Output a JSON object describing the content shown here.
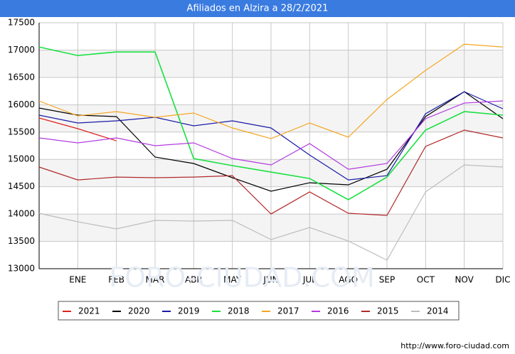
{
  "chart_data": {
    "type": "line",
    "title": "Afiliados en Alzira a 28/2/2021",
    "footer": "http://www.foro-ciudad.com",
    "watermark": "FORO-CIUDAD.COM",
    "categories": [
      null,
      "ENE",
      "FEB",
      "MAR",
      "ABR",
      "MAY",
      "JUN",
      "JUL",
      "AGO",
      "SEP",
      "OCT",
      "NOV",
      "DIC"
    ],
    "ylim": [
      13000,
      17500
    ],
    "yticks": [
      13000,
      13500,
      14000,
      14500,
      15000,
      15500,
      16000,
      16500,
      17000,
      17500
    ],
    "grid": true,
    "legend": "bottom",
    "series": [
      {
        "name": "2021",
        "color": "#e0201c",
        "values": [
          15757,
          15562,
          15340,
          null,
          null,
          null,
          null,
          null,
          null,
          null,
          null,
          null,
          null
        ]
      },
      {
        "name": "2020",
        "color": "#000000",
        "values": [
          15939,
          15809,
          15783,
          15042,
          14925,
          14665,
          14417,
          14573,
          14535,
          14820,
          15783,
          16238,
          15744
        ]
      },
      {
        "name": "2019",
        "color": "#1a1aa8",
        "values": [
          15809,
          15666,
          15705,
          15770,
          15614,
          15705,
          15575,
          15080,
          14625,
          14703,
          15835,
          16238,
          15926
        ]
      },
      {
        "name": "2018",
        "color": "#19e040",
        "values": [
          17057,
          16901,
          16966,
          16966,
          15016,
          14886,
          14768,
          14651,
          14261,
          14677,
          15536,
          15874,
          15809
        ]
      },
      {
        "name": "2017",
        "color": "#f5a623",
        "values": [
          16069,
          15796,
          15874,
          15770,
          15848,
          15575,
          15380,
          15666,
          15406,
          16095,
          16628,
          17109,
          17057
        ]
      },
      {
        "name": "2016",
        "color": "#b33be0",
        "values": [
          15393,
          15302,
          15393,
          15250,
          15302,
          15016,
          14899,
          15289,
          14820,
          14925,
          15744,
          16030,
          16069
        ]
      },
      {
        "name": "2015",
        "color": "#b02a2a",
        "values": [
          14860,
          14625,
          14677,
          14665,
          14677,
          14703,
          14001,
          14404,
          14014,
          13975,
          15237,
          15536,
          15393
        ]
      },
      {
        "name": "2014",
        "color": "#bdbdbd",
        "values": [
          14014,
          13858,
          13728,
          13884,
          13871,
          13884,
          13533,
          13754,
          13507,
          13156,
          14404,
          14899,
          14860
        ]
      }
    ]
  }
}
